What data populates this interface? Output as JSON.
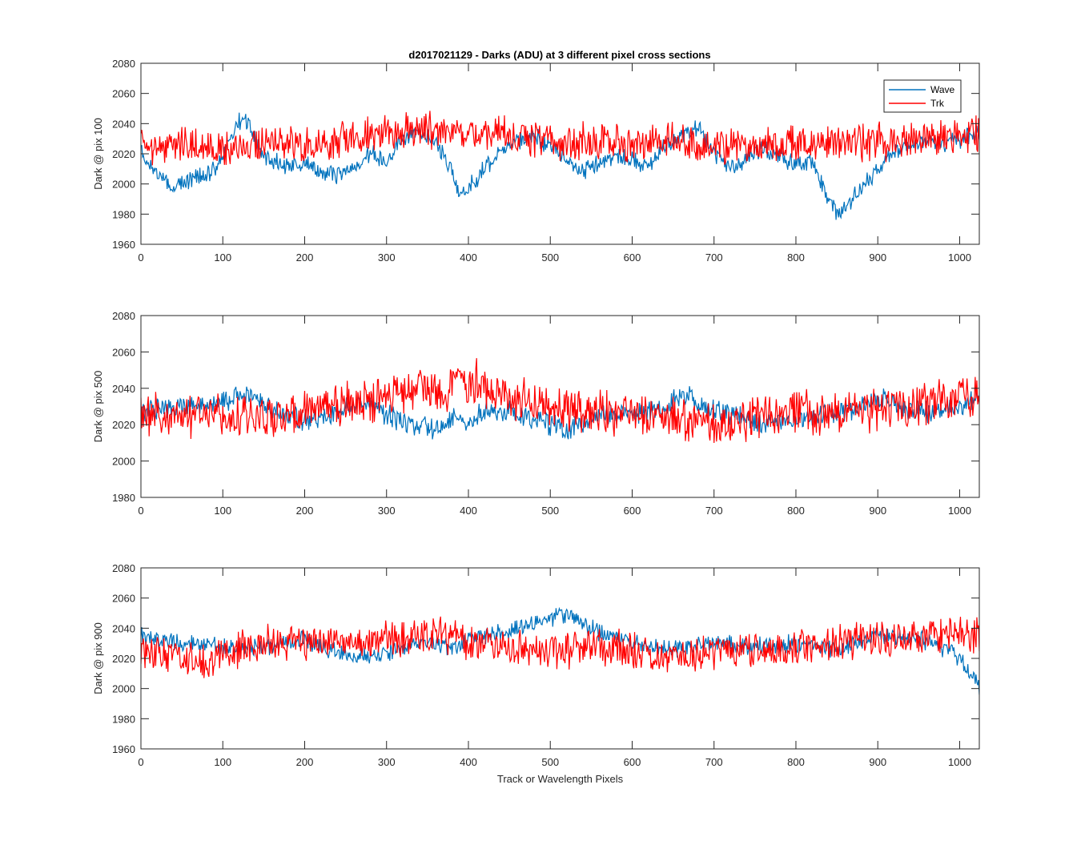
{
  "figure_title": "d2017021129 - Darks (ADU) at 3 different pixel cross sections",
  "colors": {
    "Wave": "#0072BD",
    "Trk": "#FF0000",
    "axis": "#262626",
    "background": "#ffffff"
  },
  "chart_data": [
    {
      "type": "line",
      "title": "d2017021129 - Darks (ADU) at 3 different pixel cross sections",
      "xlabel": "",
      "ylabel": "Dark @ pix 100",
      "xlim": [
        0,
        1024
      ],
      "ylim": [
        1960,
        2080
      ],
      "xticks": [
        0,
        100,
        200,
        300,
        400,
        500,
        600,
        700,
        800,
        900,
        1000
      ],
      "yticks": [
        1960,
        1980,
        2000,
        2020,
        2040,
        2060,
        2080
      ],
      "legend": {
        "entries": [
          "Wave",
          "Trk"
        ],
        "position": "top-right"
      },
      "grid": false,
      "series": [
        {
          "name": "Wave",
          "x": [
            0,
            20,
            40,
            60,
            80,
            100,
            110,
            120,
            128,
            150,
            180,
            200,
            220,
            240,
            260,
            280,
            300,
            320,
            340,
            360,
            380,
            390,
            400,
            420,
            440,
            460,
            480,
            500,
            520,
            540,
            560,
            580,
            600,
            620,
            640,
            660,
            680,
            700,
            720,
            740,
            760,
            780,
            800,
            820,
            840,
            850,
            860,
            880,
            900,
            920,
            940,
            960,
            980,
            1000,
            1024
          ],
          "values": [
            2021,
            2006,
            1998,
            2003,
            2005,
            2018,
            2032,
            2041,
            2043,
            2018,
            2012,
            2014,
            2008,
            2005,
            2013,
            2020,
            2015,
            2030,
            2035,
            2028,
            2010,
            1990,
            1997,
            2010,
            2023,
            2028,
            2032,
            2025,
            2016,
            2008,
            2015,
            2018,
            2015,
            2012,
            2025,
            2032,
            2038,
            2020,
            2012,
            2017,
            2024,
            2018,
            2013,
            2015,
            1990,
            1980,
            1985,
            1998,
            2010,
            2022,
            2026,
            2029,
            2027,
            2030,
            2035
          ]
        },
        {
          "name": "Trk",
          "x": [
            0,
            20,
            40,
            60,
            80,
            100,
            150,
            200,
            250,
            300,
            340,
            380,
            420,
            450,
            500,
            550,
            600,
            650,
            700,
            750,
            800,
            850,
            900,
            950,
            1000,
            1024
          ],
          "values": [
            2026,
            2025,
            2024,
            2025,
            2026,
            2022,
            2028,
            2026,
            2031,
            2034,
            2036,
            2033,
            2034,
            2031,
            2029,
            2028,
            2027,
            2028,
            2024,
            2025,
            2026,
            2027,
            2028,
            2029,
            2032,
            2034
          ]
        }
      ]
    },
    {
      "type": "line",
      "title": "",
      "xlabel": "",
      "ylabel": "Dark @ pix 500",
      "xlim": [
        0,
        1024
      ],
      "ylim": [
        1980,
        2080
      ],
      "xticks": [
        0,
        100,
        200,
        300,
        400,
        500,
        600,
        700,
        800,
        900,
        1000
      ],
      "yticks": [
        1980,
        2000,
        2020,
        2040,
        2060,
        2080
      ],
      "grid": false,
      "series": [
        {
          "name": "Wave",
          "x": [
            0,
            50,
            100,
            130,
            160,
            200,
            250,
            280,
            300,
            330,
            360,
            380,
            400,
            420,
            450,
            500,
            520,
            560,
            600,
            640,
            660,
            680,
            720,
            760,
            800,
            850,
            880,
            910,
            930,
            960,
            1000,
            1024
          ],
          "values": [
            2027,
            2030,
            2033,
            2037,
            2028,
            2022,
            2030,
            2031,
            2025,
            2020,
            2017,
            2023,
            2022,
            2028,
            2027,
            2020,
            2017,
            2024,
            2026,
            2030,
            2037,
            2032,
            2026,
            2020,
            2023,
            2026,
            2030,
            2036,
            2028,
            2027,
            2030,
            2034
          ]
        },
        {
          "name": "Trk",
          "x": [
            0,
            50,
            100,
            150,
            200,
            250,
            300,
            330,
            360,
            380,
            410,
            450,
            500,
            550,
            600,
            650,
            690,
            750,
            800,
            850,
            900,
            950,
            1000,
            1024
          ],
          "values": [
            2026,
            2024,
            2025,
            2023,
            2027,
            2031,
            2035,
            2040,
            2038,
            2041,
            2043,
            2036,
            2030,
            2028,
            2026,
            2024,
            2020,
            2023,
            2027,
            2026,
            2029,
            2032,
            2034,
            2036
          ]
        }
      ]
    },
    {
      "type": "line",
      "title": "",
      "xlabel": "Track or Wavelength Pixels",
      "ylabel": "Dark @ pix 900",
      "xlim": [
        0,
        1024
      ],
      "ylim": [
        1960,
        2080
      ],
      "xticks": [
        0,
        100,
        200,
        300,
        400,
        500,
        600,
        700,
        800,
        900,
        1000
      ],
      "yticks": [
        1960,
        1980,
        2000,
        2020,
        2040,
        2060,
        2080
      ],
      "grid": false,
      "series": [
        {
          "name": "Wave",
          "x": [
            0,
            50,
            100,
            150,
            200,
            230,
            260,
            300,
            350,
            380,
            400,
            450,
            500,
            520,
            550,
            600,
            650,
            700,
            750,
            800,
            850,
            900,
            950,
            990,
            1010,
            1024
          ],
          "values": [
            2034,
            2030,
            2028,
            2027,
            2033,
            2026,
            2020,
            2023,
            2032,
            2025,
            2033,
            2038,
            2046,
            2050,
            2040,
            2030,
            2026,
            2030,
            2028,
            2030,
            2026,
            2035,
            2033,
            2025,
            2012,
            2002
          ]
        },
        {
          "name": "Trk",
          "x": [
            0,
            50,
            80,
            100,
            150,
            200,
            250,
            300,
            350,
            368,
            400,
            450,
            500,
            550,
            600,
            645,
            700,
            750,
            800,
            850,
            900,
            950,
            1000,
            1024
          ],
          "values": [
            2026,
            2022,
            2016,
            2023,
            2030,
            2031,
            2032,
            2033,
            2034,
            2036,
            2030,
            2028,
            2025,
            2027,
            2026,
            2020,
            2024,
            2026,
            2027,
            2030,
            2033,
            2034,
            2038,
            2036
          ]
        }
      ]
    }
  ]
}
